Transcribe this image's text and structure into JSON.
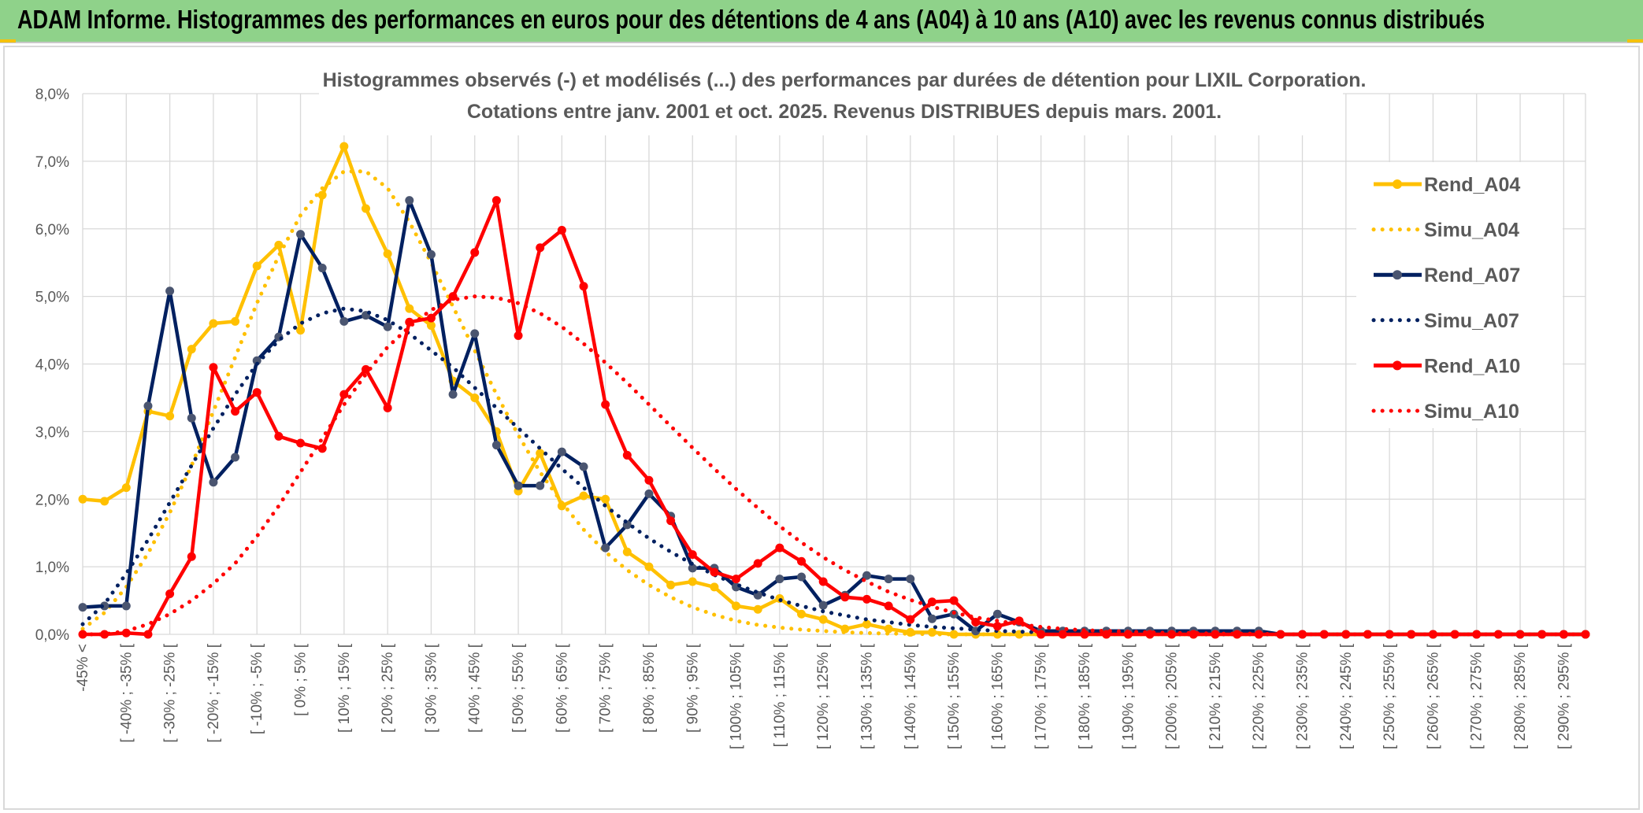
{
  "header": {
    "title": "ADAM Informe. Histogrammes des performances en euros pour des détentions de 4 ans (A04) à 10 ans (A10) avec les revenus connus distribués"
  },
  "colors": {
    "header_bg": "#8fd28a",
    "accent": "#f4c20d",
    "A04": "#ffc000",
    "A07": "#002060",
    "A07_marker": "#4a5570",
    "A10": "#ff0000",
    "grid": "#d9d9d9"
  },
  "chart_data": {
    "type": "line",
    "title_lines": [
      "Histogrammes observés (-) et modélisés (...) des performances par durées de détention pour LIXIL Corporation.",
      "Cotations entre janv. 2001 et oct. 2025. Revenus DISTRIBUES depuis mars. 2001."
    ],
    "ylim": [
      0,
      8
    ],
    "y_ticks": [
      "0,0%",
      "1,0%",
      "2,0%",
      "3,0%",
      "4,0%",
      "5,0%",
      "6,0%",
      "7,0%",
      "8,0%"
    ],
    "grid": true,
    "legend_position": "right",
    "category_labels": [
      "-45% <",
      "[ -40% ; -35% [",
      "[ -30% ; -25% [",
      "[ -20% ; -15% [",
      "[ -10% ; -5% [",
      "[ 0% ; 5% [",
      "[ 10% ; 15% [",
      "[ 20% ; 25% [",
      "[ 30% ; 35% [",
      "[ 40% ; 45% [",
      "[ 50% ; 55% [",
      "[ 60% ; 65% [",
      "[ 70% ; 75% [",
      "[ 80% ; 85% [",
      "[ 90% ; 95% [",
      "[ 100% ; 105% [",
      "[ 110% ; 115% [",
      "[ 120% ; 125% [",
      "[ 130% ; 135% [",
      "[ 140% ; 145% [",
      "[ 150% ; 155% [",
      "[ 160% ; 165% [",
      "[ 170% ; 175% [",
      "[ 180% ; 185% [",
      "[ 190% ; 195% [",
      "[ 200% ; 205% [",
      "[ 210% ; 215% [",
      "[ 220% ; 225% [",
      "[ 230% ; 235% [",
      "[ 240% ; 245% [",
      "[ 250% ; 255% [",
      "[ 260% ; 265% [",
      "[ 270% ; 275% [",
      "[ 280% ; 285% [",
      "[ 290% ; 295% ["
    ],
    "n_points": 70,
    "series": [
      {
        "name": "Rend_A04",
        "style": "solid",
        "color": "#ffc000",
        "marker": true,
        "values": [
          2.0,
          1.97,
          2.17,
          3.3,
          3.23,
          4.22,
          4.6,
          4.63,
          5.45,
          5.76,
          4.5,
          6.5,
          7.22,
          6.3,
          5.63,
          4.82,
          4.57,
          3.75,
          3.5,
          3.0,
          2.12,
          2.68,
          1.9,
          2.05,
          2.0,
          1.22,
          1.0,
          0.73,
          0.78,
          0.7,
          0.42,
          0.37,
          0.53,
          0.3,
          0.22,
          0.08,
          0.15,
          0.08,
          0.03,
          0.03,
          0.0,
          0.0,
          0.0,
          0.0,
          0.0,
          0.0,
          0.0,
          0.0,
          0.0,
          0.0,
          0.0,
          0.0,
          0.0,
          0.0,
          0.0,
          0.0,
          0.0,
          0.0,
          0.0,
          0.0,
          0.0,
          0.0,
          0.0,
          0.0,
          0.0,
          0.0,
          0.0,
          0.0,
          0.0,
          0.0
        ]
      },
      {
        "name": "Simu_A04",
        "style": "dotted",
        "color": "#ffc000",
        "marker": false,
        "values": [
          0.08,
          0.32,
          0.7,
          1.2,
          1.8,
          2.5,
          3.3,
          4.1,
          4.9,
          5.6,
          6.2,
          6.6,
          6.85,
          6.85,
          6.6,
          6.1,
          5.5,
          4.85,
          4.2,
          3.55,
          2.95,
          2.4,
          1.95,
          1.55,
          1.22,
          0.95,
          0.73,
          0.55,
          0.4,
          0.29,
          0.2,
          0.14,
          0.1,
          0.07,
          0.05,
          0.03,
          0.02,
          0.01,
          0.01,
          0.0,
          0.0,
          0.0,
          0.0,
          0.0,
          0.0,
          0.0,
          0.0,
          0.0,
          0.0,
          0.0,
          0.0,
          0.0,
          0.0,
          0.0,
          0.0,
          0.0,
          0.0,
          0.0,
          0.0,
          0.0,
          0.0,
          0.0,
          0.0,
          0.0,
          0.0,
          0.0,
          0.0,
          0.0,
          0.0,
          0.0
        ]
      },
      {
        "name": "Rend_A07",
        "style": "solid",
        "color": "#002060",
        "marker": true,
        "values": [
          0.4,
          0.42,
          0.42,
          3.38,
          5.08,
          3.2,
          2.25,
          2.62,
          4.05,
          4.4,
          5.92,
          5.42,
          4.63,
          4.72,
          4.55,
          6.42,
          5.62,
          3.55,
          4.45,
          2.8,
          2.2,
          2.2,
          2.7,
          2.48,
          1.28,
          1.62,
          2.08,
          1.75,
          0.98,
          0.98,
          0.7,
          0.58,
          0.82,
          0.85,
          0.43,
          0.58,
          0.87,
          0.82,
          0.82,
          0.23,
          0.3,
          0.05,
          0.3,
          0.18,
          0.05,
          0.05,
          0.05,
          0.05,
          0.05,
          0.05,
          0.05,
          0.05,
          0.05,
          0.05,
          0.05,
          0.0,
          0.0,
          0.0,
          0.0,
          0.0,
          0.0,
          0.0,
          0.0,
          0.0,
          0.0,
          0.0,
          0.0,
          0.0,
          0.0,
          0.0
        ]
      },
      {
        "name": "Simu_A07",
        "style": "dotted",
        "color": "#002060",
        "marker": false,
        "values": [
          0.15,
          0.45,
          0.9,
          1.4,
          1.95,
          2.5,
          3.05,
          3.55,
          4.0,
          4.35,
          4.6,
          4.75,
          4.82,
          4.78,
          4.65,
          4.45,
          4.2,
          3.95,
          3.65,
          3.35,
          3.05,
          2.75,
          2.45,
          2.17,
          1.9,
          1.65,
          1.42,
          1.22,
          1.04,
          0.88,
          0.74,
          0.62,
          0.51,
          0.42,
          0.34,
          0.28,
          0.22,
          0.18,
          0.14,
          0.11,
          0.09,
          0.07,
          0.05,
          0.04,
          0.03,
          0.02,
          0.02,
          0.01,
          0.01,
          0.01,
          0.0,
          0.0,
          0.0,
          0.0,
          0.0,
          0.0,
          0.0,
          0.0,
          0.0,
          0.0,
          0.0,
          0.0,
          0.0,
          0.0,
          0.0,
          0.0,
          0.0,
          0.0,
          0.0,
          0.0
        ]
      },
      {
        "name": "Rend_A10",
        "style": "solid",
        "color": "#ff0000",
        "marker": true,
        "values": [
          0.0,
          0.0,
          0.02,
          0.0,
          0.6,
          1.15,
          3.95,
          3.3,
          3.58,
          2.93,
          2.83,
          2.75,
          3.55,
          3.92,
          3.35,
          4.62,
          4.68,
          5.0,
          5.65,
          6.42,
          4.42,
          5.72,
          5.98,
          5.15,
          3.4,
          2.65,
          2.28,
          1.68,
          1.18,
          0.92,
          0.82,
          1.05,
          1.28,
          1.08,
          0.78,
          0.55,
          0.52,
          0.42,
          0.22,
          0.48,
          0.5,
          0.18,
          0.12,
          0.2,
          0.0,
          0.0,
          0.0,
          0.0,
          0.0,
          0.0,
          0.0,
          0.0,
          0.0,
          0.0,
          0.0,
          0.0,
          0.0,
          0.0,
          0.0,
          0.0,
          0.0,
          0.0,
          0.0,
          0.0,
          0.0,
          0.0,
          0.0,
          0.0,
          0.0,
          0.0
        ]
      },
      {
        "name": "Simu_A10",
        "style": "dotted",
        "color": "#ff0000",
        "marker": false,
        "values": [
          0.0,
          0.0,
          0.05,
          0.15,
          0.3,
          0.5,
          0.75,
          1.05,
          1.45,
          1.9,
          2.4,
          2.9,
          3.4,
          3.85,
          4.25,
          4.55,
          4.8,
          4.95,
          5.0,
          4.98,
          4.9,
          4.75,
          4.55,
          4.3,
          4.02,
          3.72,
          3.4,
          3.08,
          2.76,
          2.45,
          2.15,
          1.87,
          1.6,
          1.36,
          1.14,
          0.95,
          0.78,
          0.63,
          0.51,
          0.41,
          0.32,
          0.25,
          0.2,
          0.15,
          0.11,
          0.08,
          0.06,
          0.05,
          0.04,
          0.03,
          0.02,
          0.02,
          0.01,
          0.01,
          0.01,
          0.0,
          0.0,
          0.0,
          0.0,
          0.0,
          0.0,
          0.0,
          0.0,
          0.0,
          0.0,
          0.0,
          0.0,
          0.0,
          0.0,
          0.0
        ]
      }
    ]
  }
}
